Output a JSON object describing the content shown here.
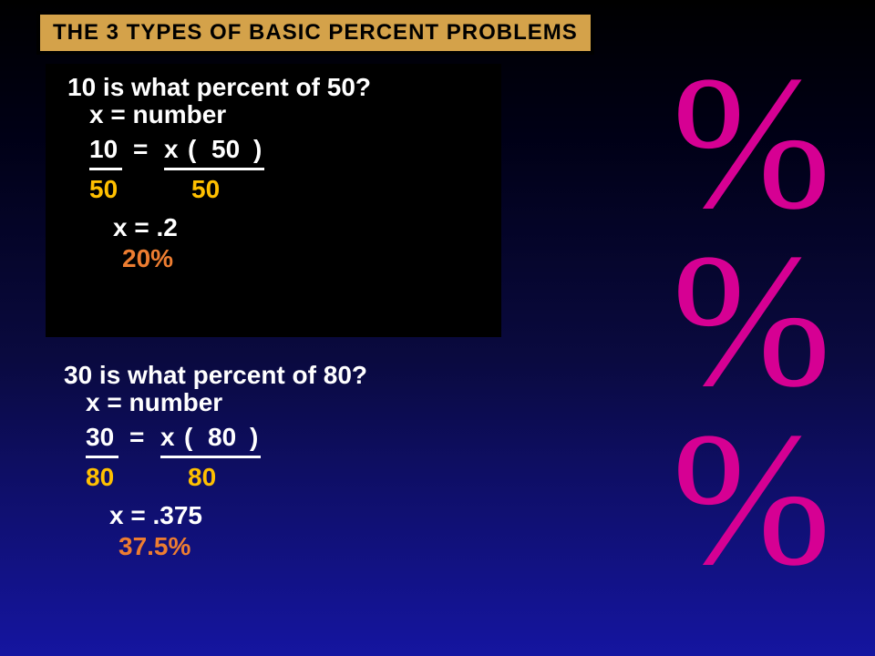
{
  "colors": {
    "title_bg": "#d4a24a",
    "title_border": "#000000",
    "title_text": "#000000",
    "box_bg": "#000000",
    "white": "#ffffff",
    "yellow": "#ffc000",
    "orange": "#ed7d31",
    "magenta": "#d60093"
  },
  "title": "THE 3 TYPES OF BASIC PERCENT PROBLEMS",
  "problem1": {
    "question": "10 is what percent of 50?",
    "assign": "x = number",
    "lhs": "10",
    "eq": "=",
    "x": "x",
    "lp": "(",
    "val": "50",
    "rp": ")",
    "d1": "50",
    "d2": "50",
    "solve": "x = .2",
    "answer": "20%"
  },
  "problem2": {
    "question": "30 is what percent of 80?",
    "assign": "x = number",
    "lhs": "30",
    "eq": "=",
    "x": "x",
    "lp": "(",
    "val": "80",
    "rp": ")",
    "d1": "80",
    "d2": "80",
    "solve": "x = .375",
    "answer": "37.5%"
  },
  "decor": {
    "p1": "%",
    "p2": "%",
    "p3": "%"
  }
}
